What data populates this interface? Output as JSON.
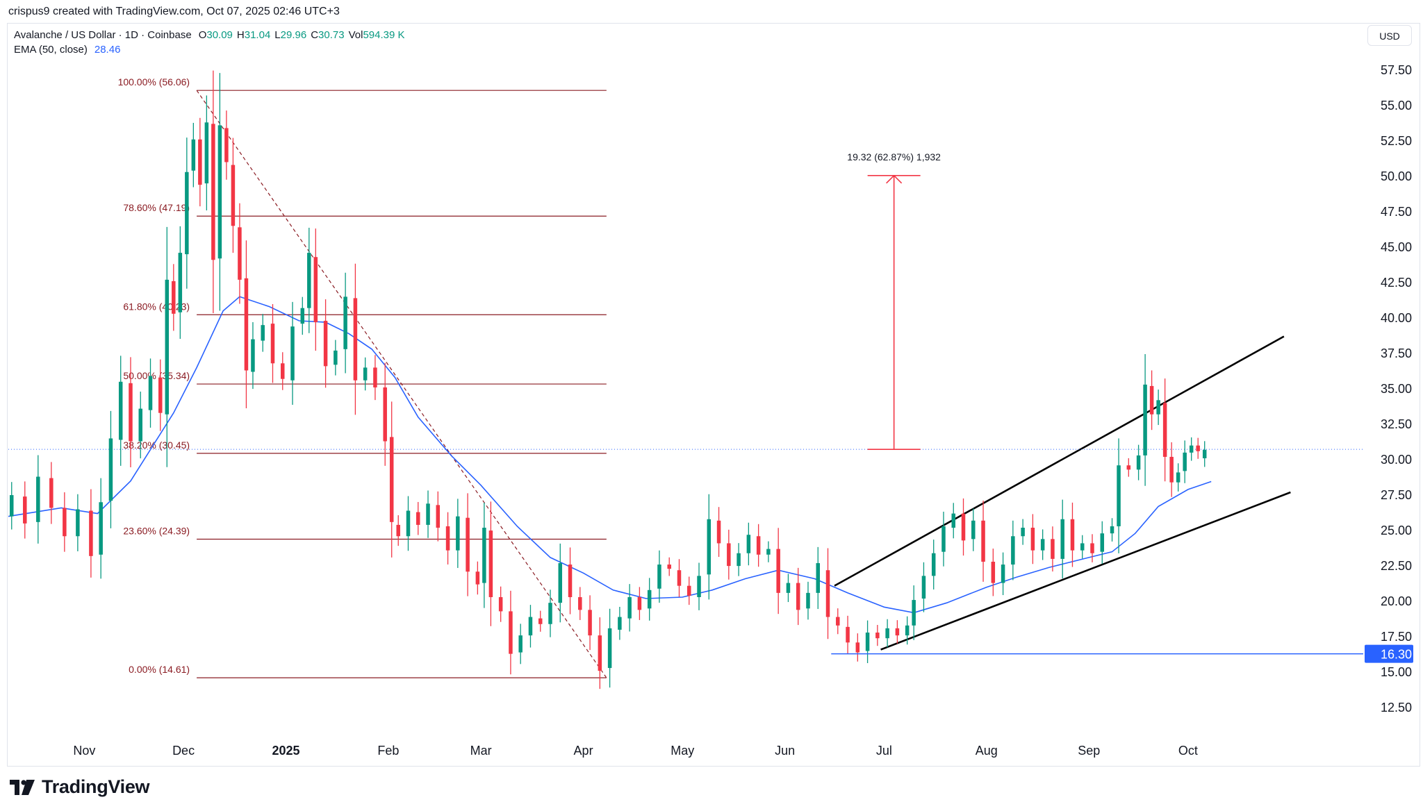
{
  "header": {
    "meta": "crispus9 created with TradingView.com, Oct 07, 2025 02:46 UTC+3"
  },
  "legend": {
    "symbol": "Avalanche / US Dollar · 1D · Coinbase",
    "open_label": "O",
    "open": "30.09",
    "high_label": "H",
    "high": "31.04",
    "low_label": "L",
    "low": "29.96",
    "close_label": "C",
    "close": "30.73",
    "vol_label": "Vol",
    "volume": "594.39 K",
    "ema_label": "EMA (50, close)",
    "ema_value": "28.46"
  },
  "currency_button": "USD",
  "branding": {
    "name": "TradingView"
  },
  "colors": {
    "up": "#089981",
    "down": "#f23645",
    "ema": "#2962ff",
    "fib": "#8a1b22",
    "channel": "#000000",
    "support": "#2962ff",
    "measure": "#f23645",
    "price_line": "#2962ff",
    "axis_text": "#131722"
  },
  "chart_data": {
    "type": "candlestick",
    "y_axis": {
      "ticks": [
        12.5,
        15,
        17.5,
        20,
        22.5,
        25,
        27.5,
        30,
        32.5,
        35,
        37.5,
        40,
        42.5,
        45,
        47.5,
        50,
        52.5,
        55,
        57.5
      ],
      "tick_labels": [
        "12.50",
        "15.00",
        "17.50",
        "20.00",
        "22.50",
        "25.00",
        "27.50",
        "30.00",
        "32.50",
        "35.00",
        "37.50",
        "40.00",
        "42.50",
        "45.00",
        "47.50",
        "50.00",
        "52.50",
        "55.00",
        "57.50"
      ],
      "ylim": [
        10.5,
        59.5
      ]
    },
    "x_axis": {
      "labels": [
        "Nov",
        "Dec",
        "2025",
        "Feb",
        "Mar",
        "Apr",
        "May",
        "Jun",
        "Jul",
        "Aug",
        "Sep",
        "Oct"
      ],
      "bold": [
        false,
        false,
        true,
        false,
        false,
        false,
        false,
        false,
        false,
        false,
        false,
        false
      ],
      "dates": [
        "2024-11-01",
        "2024-12-01",
        "2025-01-01",
        "2025-02-01",
        "2025-03-01",
        "2025-04-01",
        "2025-05-01",
        "2025-06-01",
        "2025-07-01",
        "2025-08-01",
        "2025-09-01",
        "2025-10-01"
      ],
      "xlim": [
        "2024-10-09",
        "2025-11-23"
      ]
    },
    "candles": [
      [
        "2024-10-10",
        26.0,
        27.5
      ],
      [
        "2024-10-14",
        27.4,
        25.5
      ],
      [
        "2024-10-18",
        25.6,
        28.8
      ],
      [
        "2024-10-22",
        28.7,
        26.6
      ],
      [
        "2024-10-26",
        26.6,
        24.6
      ],
      [
        "2024-10-30",
        24.6,
        26.5
      ],
      [
        "2024-11-03",
        26.4,
        23.2
      ],
      [
        "2024-11-06",
        23.3,
        27.0
      ],
      [
        "2024-11-09",
        27.1,
        31.5
      ],
      [
        "2024-11-12",
        31.4,
        35.5
      ],
      [
        "2024-11-15",
        35.4,
        31.3
      ],
      [
        "2024-11-18",
        31.3,
        33.6
      ],
      [
        "2024-11-21",
        33.5,
        35.9
      ],
      [
        "2024-11-24",
        35.8,
        33.3
      ],
      [
        "2024-11-26",
        33.2,
        42.7
      ],
      [
        "2024-11-28",
        42.6,
        40.3
      ],
      [
        "2024-11-30",
        40.4,
        44.6
      ],
      [
        "2024-12-02",
        44.5,
        50.3
      ],
      [
        "2024-12-04",
        50.4,
        52.6
      ],
      [
        "2024-12-06",
        52.6,
        49.4
      ],
      [
        "2024-12-08",
        49.5,
        53.8
      ],
      [
        "2024-12-10",
        53.7,
        44.1
      ],
      [
        "2024-12-12",
        44.2,
        53.6
      ],
      [
        "2024-12-14",
        53.4,
        51.0
      ],
      [
        "2024-12-16",
        50.8,
        46.5
      ],
      [
        "2024-12-18",
        46.4,
        42.7
      ],
      [
        "2024-12-20",
        42.8,
        36.3
      ],
      [
        "2024-12-22",
        36.2,
        38.5
      ],
      [
        "2024-12-25",
        38.4,
        39.5
      ],
      [
        "2024-12-28",
        39.6,
        36.8
      ],
      [
        "2024-12-31",
        36.8,
        35.7
      ],
      [
        "2025-01-03",
        35.6,
        39.4
      ],
      [
        "2025-01-06",
        39.6,
        40.7
      ],
      [
        "2025-01-08",
        40.7,
        44.6
      ],
      [
        "2025-01-10",
        44.3,
        39.7
      ],
      [
        "2025-01-13",
        39.8,
        36.6
      ],
      [
        "2025-01-16",
        36.7,
        37.7
      ],
      [
        "2025-01-19",
        37.8,
        41.5
      ],
      [
        "2025-01-22",
        41.4,
        35.6
      ],
      [
        "2025-01-25",
        35.6,
        36.5
      ],
      [
        "2025-01-28",
        36.5,
        35.1
      ],
      [
        "2025-01-31",
        35.1,
        31.3
      ],
      [
        "2025-02-02",
        31.6,
        25.6
      ],
      [
        "2025-02-04",
        25.4,
        24.6
      ],
      [
        "2025-02-07",
        24.6,
        26.4
      ],
      [
        "2025-02-10",
        26.3,
        25.4
      ],
      [
        "2025-02-13",
        25.4,
        26.9
      ],
      [
        "2025-02-16",
        26.8,
        25.2
      ],
      [
        "2025-02-19",
        25.3,
        23.6
      ],
      [
        "2025-02-22",
        23.6,
        26.0
      ],
      [
        "2025-02-25",
        25.9,
        22.1
      ],
      [
        "2025-02-28",
        22.1,
        21.2
      ],
      [
        "2025-03-02",
        21.3,
        25.2
      ],
      [
        "2025-03-04",
        25.0,
        20.3
      ],
      [
        "2025-03-07",
        20.3,
        19.3
      ],
      [
        "2025-03-10",
        19.3,
        16.3
      ],
      [
        "2025-03-13",
        16.4,
        17.6
      ],
      [
        "2025-03-16",
        17.6,
        18.9
      ],
      [
        "2025-03-19",
        18.8,
        18.4
      ],
      [
        "2025-03-22",
        18.4,
        19.9
      ],
      [
        "2025-03-25",
        19.9,
        22.7
      ],
      [
        "2025-03-28",
        22.6,
        20.3
      ],
      [
        "2025-03-31",
        20.3,
        19.4
      ],
      [
        "2025-04-03",
        19.4,
        17.6
      ],
      [
        "2025-04-06",
        17.6,
        15.1
      ],
      [
        "2025-04-09",
        15.3,
        18.1
      ],
      [
        "2025-04-12",
        18.0,
        18.9
      ],
      [
        "2025-04-15",
        18.8,
        20.3
      ],
      [
        "2025-04-18",
        20.3,
        19.4
      ],
      [
        "2025-04-21",
        19.5,
        20.8
      ],
      [
        "2025-04-24",
        20.9,
        22.6
      ],
      [
        "2025-04-27",
        22.6,
        22.3
      ],
      [
        "2025-04-30",
        22.2,
        21.1
      ],
      [
        "2025-05-03",
        21.1,
        20.4
      ],
      [
        "2025-05-06",
        20.3,
        21.8
      ],
      [
        "2025-05-09",
        21.9,
        25.8
      ],
      [
        "2025-05-12",
        25.7,
        24.1
      ],
      [
        "2025-05-15",
        24.1,
        22.5
      ],
      [
        "2025-05-18",
        22.5,
        23.4
      ],
      [
        "2025-05-21",
        23.4,
        24.7
      ],
      [
        "2025-05-24",
        24.6,
        23.3
      ],
      [
        "2025-05-27",
        23.3,
        23.7
      ],
      [
        "2025-05-30",
        23.7,
        20.6
      ],
      [
        "2025-06-02",
        20.6,
        21.3
      ],
      [
        "2025-06-05",
        21.3,
        19.4
      ],
      [
        "2025-06-08",
        19.5,
        20.6
      ],
      [
        "2025-06-11",
        20.6,
        22.7
      ],
      [
        "2025-06-14",
        22.2,
        18.9
      ],
      [
        "2025-06-17",
        18.9,
        18.3
      ],
      [
        "2025-06-20",
        18.2,
        17.1
      ],
      [
        "2025-06-23",
        17.1,
        16.4
      ],
      [
        "2025-06-26",
        16.5,
        17.8
      ],
      [
        "2025-06-29",
        17.8,
        17.4
      ],
      [
        "2025-07-02",
        17.4,
        18.1
      ],
      [
        "2025-07-05",
        18.1,
        17.6
      ],
      [
        "2025-07-08",
        17.6,
        18.3
      ],
      [
        "2025-07-10",
        18.3,
        20.1
      ],
      [
        "2025-07-13",
        20.2,
        21.8
      ],
      [
        "2025-07-16",
        21.8,
        23.4
      ],
      [
        "2025-07-19",
        23.5,
        25.3
      ],
      [
        "2025-07-22",
        25.2,
        26.2
      ],
      [
        "2025-07-25",
        26.2,
        24.3
      ],
      [
        "2025-07-28",
        24.4,
        25.7
      ],
      [
        "2025-07-31",
        25.7,
        22.8
      ],
      [
        "2025-08-03",
        22.8,
        21.3
      ],
      [
        "2025-08-06",
        21.3,
        22.6
      ],
      [
        "2025-08-09",
        22.6,
        24.6
      ],
      [
        "2025-08-12",
        24.6,
        25.2
      ],
      [
        "2025-08-15",
        25.2,
        23.6
      ],
      [
        "2025-08-18",
        23.6,
        24.4
      ],
      [
        "2025-08-21",
        24.4,
        23.0
      ],
      [
        "2025-08-24",
        23.0,
        25.8
      ],
      [
        "2025-08-27",
        25.8,
        23.6
      ],
      [
        "2025-08-30",
        23.6,
        24.1
      ],
      [
        "2025-09-02",
        24.1,
        23.4
      ],
      [
        "2025-09-05",
        23.5,
        24.8
      ],
      [
        "2025-09-08",
        24.8,
        25.3
      ],
      [
        "2025-09-10",
        25.3,
        29.6
      ],
      [
        "2025-09-13",
        29.6,
        29.3
      ],
      [
        "2025-09-16",
        29.3,
        30.3
      ],
      [
        "2025-09-18",
        30.3,
        35.3
      ],
      [
        "2025-09-20",
        35.2,
        33.2
      ],
      [
        "2025-09-22",
        33.2,
        34.2
      ],
      [
        "2025-09-24",
        34.0,
        30.2
      ],
      [
        "2025-09-26",
        30.2,
        28.4
      ],
      [
        "2025-09-28",
        28.4,
        29.1
      ],
      [
        "2025-09-30",
        29.2,
        30.5
      ],
      [
        "2025-10-02",
        30.5,
        31.0
      ],
      [
        "2025-10-04",
        31.0,
        30.6
      ],
      [
        "2025-10-06",
        30.1,
        30.7
      ]
    ],
    "ema_50": [
      [
        "2024-10-09",
        26.0
      ],
      [
        "2024-10-25",
        26.6
      ],
      [
        "2024-11-05",
        26.2
      ],
      [
        "2024-11-15",
        28.5
      ],
      [
        "2024-11-28",
        33.3
      ],
      [
        "2024-12-05",
        36.5
      ],
      [
        "2024-12-13",
        40.5
      ],
      [
        "2024-12-18",
        41.5
      ],
      [
        "2024-12-27",
        40.8
      ],
      [
        "2025-01-05",
        39.8
      ],
      [
        "2025-01-13",
        39.7
      ],
      [
        "2025-01-20",
        38.9
      ],
      [
        "2025-01-27",
        37.8
      ],
      [
        "2025-02-03",
        35.8
      ],
      [
        "2025-02-10",
        33.0
      ],
      [
        "2025-02-20",
        30.3
      ],
      [
        "2025-03-01",
        28.2
      ],
      [
        "2025-03-12",
        25.3
      ],
      [
        "2025-03-22",
        23.1
      ],
      [
        "2025-04-01",
        22.0
      ],
      [
        "2025-04-10",
        20.8
      ],
      [
        "2025-04-20",
        20.2
      ],
      [
        "2025-05-01",
        20.3
      ],
      [
        "2025-05-10",
        20.8
      ],
      [
        "2025-05-20",
        21.6
      ],
      [
        "2025-05-30",
        22.2
      ],
      [
        "2025-06-10",
        21.6
      ],
      [
        "2025-06-20",
        20.6
      ],
      [
        "2025-07-01",
        19.6
      ],
      [
        "2025-07-10",
        19.2
      ],
      [
        "2025-07-20",
        19.9
      ],
      [
        "2025-08-01",
        21.0
      ],
      [
        "2025-08-10",
        21.7
      ],
      [
        "2025-08-20",
        22.4
      ],
      [
        "2025-09-01",
        23.1
      ],
      [
        "2025-09-08",
        23.5
      ],
      [
        "2025-09-15",
        24.8
      ],
      [
        "2025-09-22",
        26.7
      ],
      [
        "2025-10-01",
        27.9
      ],
      [
        "2025-10-08",
        28.46
      ]
    ],
    "fibonacci": {
      "start_date": "2024-12-05",
      "end_date": "2025-04-08",
      "levels": [
        {
          "label": "100.00% (56.06)",
          "price": 56.06
        },
        {
          "label": "78.60% (47.19)",
          "price": 47.19
        },
        {
          "label": "61.80% (40.23)",
          "price": 40.23
        },
        {
          "label": "50.00% (35.34)",
          "price": 35.34
        },
        {
          "label": "38.20% (30.45)",
          "price": 30.45
        },
        {
          "label": "23.60% (24.39)",
          "price": 24.39
        },
        {
          "label": "0.00% (14.61)",
          "price": 14.61
        }
      ],
      "trend_from": [
        "2024-12-05",
        56.06
      ],
      "trend_to": [
        "2025-04-08",
        14.61
      ]
    },
    "channel": {
      "upper": [
        [
          "2025-06-16",
          21.1
        ],
        [
          "2025-10-30",
          38.7
        ]
      ],
      "lower": [
        [
          "2025-06-30",
          16.6
        ],
        [
          "2025-11-01",
          27.7
        ]
      ]
    },
    "support": {
      "price": 16.3,
      "label": "16.30",
      "start_date": "2025-06-15"
    },
    "current_price": 30.73,
    "measure": {
      "label": "19.32 (62.87%) 1,932",
      "date": "2025-07-04",
      "from": 30.73,
      "to": 50.05
    }
  }
}
